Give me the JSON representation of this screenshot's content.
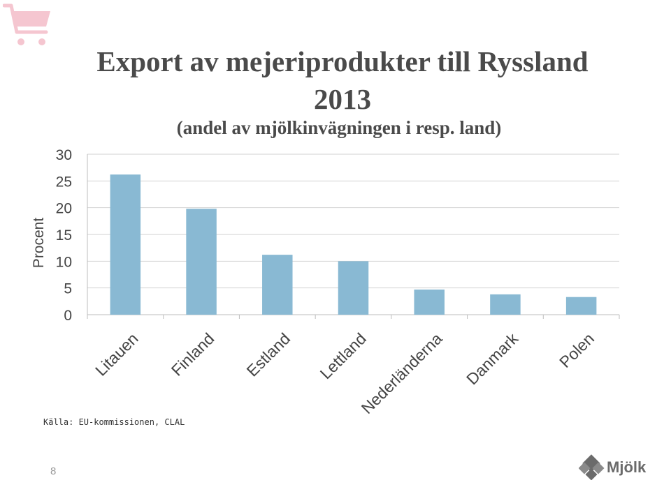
{
  "slide": {
    "title_line1": "Export av mejeriprodukter till Ryssland",
    "title_line2": "2013",
    "subtitle": "(andel av mjölkinvägningen i resp. land)",
    "source": "Källa: EU-kommissionen, CLAL",
    "page_number": "8",
    "logo_text": "Mjölk",
    "logo_icon": "svenska-mjolk-emblem-icon",
    "corner_icon": "shopping-cart-icon",
    "accent_color": "#f5c6d0"
  },
  "chart_data": {
    "type": "bar",
    "title": "Export av mejeriprodukter till Ryssland 2013",
    "subtitle": "(andel av mjölkinvägningen i resp. land)",
    "ylabel": "Procent",
    "xlabel": "",
    "ylim": [
      0,
      30
    ],
    "yticks": [
      0,
      5,
      10,
      15,
      20,
      25,
      30
    ],
    "grid": true,
    "legend": "none",
    "bar_color": "#89b9d3",
    "categories": [
      "Litauen",
      "Finland",
      "Estland",
      "Lettland",
      "Nederländerna",
      "Danmark",
      "Polen"
    ],
    "values": [
      26.2,
      19.8,
      11.2,
      10.0,
      4.7,
      3.8,
      3.3
    ]
  }
}
